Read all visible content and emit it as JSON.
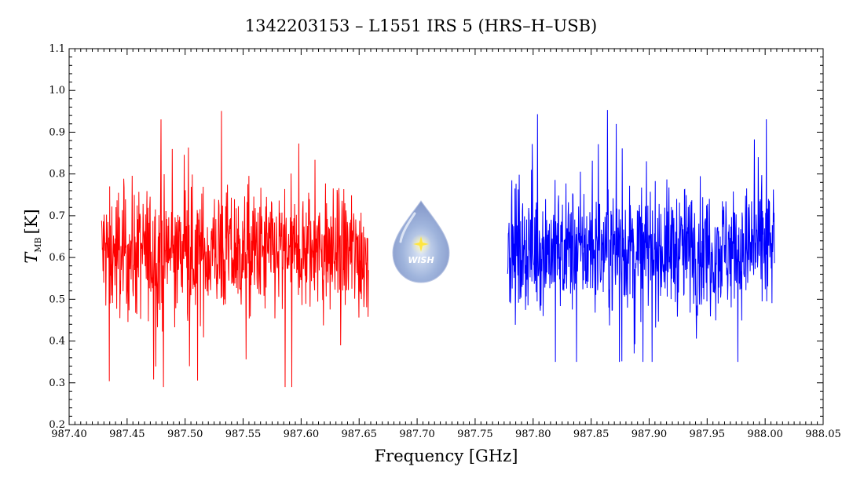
{
  "chart_data": {
    "type": "line",
    "title": "1342203153 – L1551 IRS 5 (HRS–H–USB)",
    "xlabel": "Frequency [GHz]",
    "ylabel_main": "T",
    "ylabel_sub": "MB",
    "ylabel_unit": "[K]",
    "xlim": [
      987.4,
      988.05
    ],
    "ylim": [
      0.2,
      1.1
    ],
    "x_ticks": [
      "987.40",
      "987.45",
      "987.50",
      "987.55",
      "987.60",
      "987.65",
      "987.70",
      "987.75",
      "987.80",
      "987.85",
      "987.90",
      "987.95",
      "988.00",
      "988.05"
    ],
    "y_ticks": [
      "0.2",
      "0.3",
      "0.4",
      "0.5",
      "0.6",
      "0.7",
      "0.8",
      "0.9",
      "1.0",
      "1.1"
    ],
    "grid": false,
    "series": [
      {
        "color": "#ff0000",
        "x_range": [
          987.428,
          987.658
        ],
        "mean": 0.61,
        "noise": 0.085,
        "n_points": 760,
        "min": 0.29,
        "max": 0.96
      },
      {
        "color": "#0000ff",
        "x_range": [
          987.778,
          988.008
        ],
        "mean": 0.62,
        "noise": 0.08,
        "n_points": 760,
        "min": 0.35,
        "max": 0.98
      }
    ]
  },
  "logo": {
    "text": "WISH",
    "icon": "wish-droplet-logo"
  }
}
